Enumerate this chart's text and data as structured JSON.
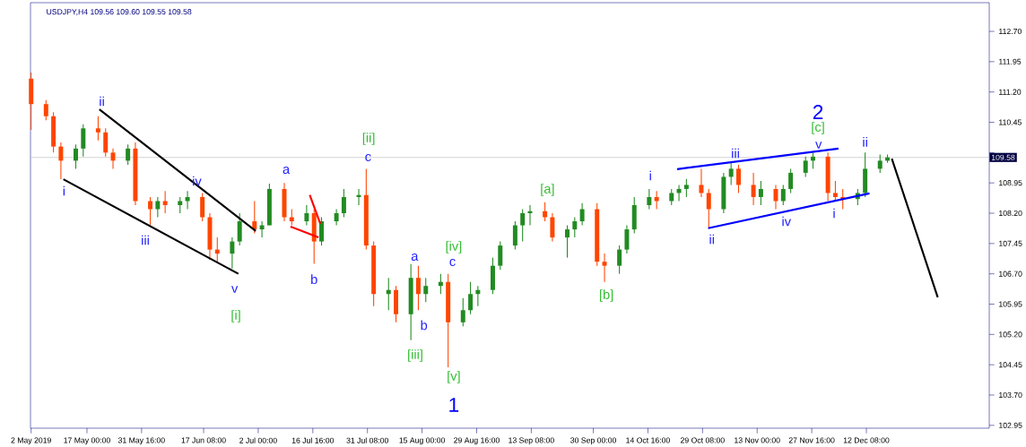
{
  "chart_data": {
    "type": "candlestick",
    "title": "USDJPY,H4  109.56 109.60 109.55 109.58",
    "x": [
      "2019-05-02",
      "2019-05-06",
      "2019-05-08",
      "2019-05-10",
      "2019-05-14",
      "2019-05-16",
      "2019-05-20",
      "2019-05-22",
      "2019-05-24",
      "2019-05-28",
      "2019-05-30",
      "2019-06-03",
      "2019-06-05",
      "2019-06-07",
      "2019-06-11",
      "2019-06-13",
      "2019-06-17",
      "2019-06-19",
      "2019-06-21",
      "2019-06-25",
      "2019-06-27",
      "2019-07-01",
      "2019-07-03",
      "2019-07-05",
      "2019-07-09",
      "2019-07-11",
      "2019-07-15",
      "2019-07-17",
      "2019-07-19",
      "2019-07-23",
      "2019-07-25",
      "2019-07-29",
      "2019-07-31",
      "2019-08-02",
      "2019-08-06",
      "2019-08-08",
      "2019-08-12",
      "2019-08-14",
      "2019-08-16",
      "2019-08-20",
      "2019-08-22",
      "2019-08-26",
      "2019-08-28",
      "2019-08-30",
      "2019-09-03",
      "2019-09-05",
      "2019-09-09",
      "2019-09-11",
      "2019-09-13",
      "2019-09-17",
      "2019-09-19",
      "2019-09-23",
      "2019-09-25",
      "2019-09-27",
      "2019-10-01",
      "2019-10-03",
      "2019-10-07",
      "2019-10-09",
      "2019-10-11",
      "2019-10-15",
      "2019-10-17",
      "2019-10-21",
      "2019-10-23",
      "2019-10-25",
      "2019-10-29",
      "2019-10-31",
      "2019-11-04",
      "2019-11-06",
      "2019-11-08",
      "2019-11-12",
      "2019-11-14",
      "2019-11-18",
      "2019-11-20",
      "2019-11-22",
      "2019-11-26",
      "2019-11-28",
      "2019-12-02",
      "2019-12-04",
      "2019-12-06",
      "2019-12-10",
      "2019-12-12",
      "2019-12-16",
      "2019-12-18"
    ],
    "ohlc": [
      [
        111.53,
        111.68,
        110.26,
        110.9
      ],
      [
        110.9,
        111.0,
        110.5,
        110.6
      ],
      [
        110.6,
        110.7,
        109.7,
        109.85
      ],
      [
        109.85,
        109.95,
        109.04,
        109.5
      ],
      [
        109.5,
        109.9,
        109.3,
        109.8
      ],
      [
        109.8,
        110.4,
        109.6,
        110.3
      ],
      [
        110.3,
        110.6,
        110.0,
        110.2
      ],
      [
        110.2,
        110.3,
        109.6,
        109.7
      ],
      [
        109.7,
        109.8,
        109.3,
        109.5
      ],
      [
        109.5,
        109.9,
        109.4,
        109.8
      ],
      [
        109.8,
        109.95,
        108.4,
        108.5
      ],
      [
        108.5,
        108.6,
        107.9,
        108.3
      ],
      [
        108.3,
        108.6,
        108.1,
        108.5
      ],
      [
        108.5,
        108.75,
        108.2,
        108.4
      ],
      [
        108.4,
        108.6,
        108.2,
        108.5
      ],
      [
        108.5,
        108.75,
        108.3,
        108.6
      ],
      [
        108.6,
        108.7,
        108.0,
        108.1
      ],
      [
        108.1,
        108.2,
        107.05,
        107.3
      ],
      [
        107.3,
        107.6,
        107.0,
        107.2
      ],
      [
        107.2,
        107.6,
        106.83,
        107.5
      ],
      [
        107.5,
        108.2,
        107.4,
        108.0
      ],
      [
        108.0,
        108.5,
        107.7,
        107.8
      ],
      [
        107.8,
        108.0,
        107.6,
        107.9
      ],
      [
        107.9,
        108.93,
        107.9,
        108.8
      ],
      [
        108.8,
        108.95,
        108.0,
        108.1
      ],
      [
        108.1,
        108.3,
        107.9,
        108.0
      ],
      [
        108.0,
        108.4,
        107.9,
        108.2
      ],
      [
        108.2,
        108.3,
        106.95,
        107.5
      ],
      [
        107.5,
        108.1,
        107.4,
        108.0
      ],
      [
        108.0,
        108.3,
        107.9,
        108.2
      ],
      [
        108.2,
        108.8,
        108.1,
        108.6
      ],
      [
        108.6,
        108.8,
        108.4,
        108.65
      ],
      [
        108.65,
        109.3,
        107.3,
        107.4
      ],
      [
        107.4,
        107.5,
        105.9,
        106.2
      ],
      [
        106.2,
        106.6,
        105.8,
        106.3
      ],
      [
        106.3,
        106.4,
        105.5,
        105.7
      ],
      [
        105.7,
        106.94,
        105.06,
        106.6
      ],
      [
        106.6,
        106.9,
        105.8,
        106.2
      ],
      [
        106.2,
        106.6,
        106.0,
        106.4
      ],
      [
        106.4,
        106.7,
        106.2,
        106.5
      ],
      [
        106.5,
        106.7,
        104.39,
        105.5
      ],
      [
        105.5,
        106.1,
        105.4,
        105.8
      ],
      [
        105.8,
        106.5,
        105.7,
        106.2
      ],
      [
        106.2,
        106.4,
        105.9,
        106.3
      ],
      [
        106.3,
        107.1,
        106.2,
        106.9
      ],
      [
        106.9,
        107.5,
        106.8,
        107.4
      ],
      [
        107.4,
        108.0,
        107.3,
        107.9
      ],
      [
        107.9,
        108.3,
        107.5,
        108.2
      ],
      [
        108.2,
        108.4,
        107.9,
        108.25
      ],
      [
        108.25,
        108.47,
        108.0,
        108.1
      ],
      [
        108.1,
        108.2,
        107.5,
        107.6
      ],
      [
        107.6,
        107.9,
        107.1,
        107.8
      ],
      [
        107.8,
        108.1,
        107.6,
        108.0
      ],
      [
        108.0,
        108.45,
        107.9,
        108.3
      ],
      [
        108.3,
        108.45,
        106.9,
        107.0
      ],
      [
        107.0,
        107.2,
        106.5,
        106.9
      ],
      [
        106.9,
        107.4,
        106.7,
        107.3
      ],
      [
        107.3,
        107.9,
        107.2,
        107.8
      ],
      [
        107.8,
        108.6,
        107.7,
        108.4
      ],
      [
        108.4,
        108.8,
        108.3,
        108.6
      ],
      [
        108.6,
        108.75,
        108.3,
        108.5
      ],
      [
        108.5,
        108.8,
        108.4,
        108.7
      ],
      [
        108.7,
        108.9,
        108.5,
        108.8
      ],
      [
        108.8,
        109.05,
        108.6,
        108.9
      ],
      [
        108.9,
        109.3,
        108.6,
        108.7
      ],
      [
        108.7,
        108.8,
        107.85,
        108.3
      ],
      [
        108.3,
        109.2,
        108.2,
        109.1
      ],
      [
        109.1,
        109.45,
        108.9,
        109.3
      ],
      [
        109.3,
        109.4,
        108.7,
        108.9
      ],
      [
        108.9,
        109.2,
        108.4,
        108.6
      ],
      [
        108.6,
        109.0,
        108.4,
        108.8
      ],
      [
        108.8,
        108.9,
        108.3,
        108.5
      ],
      [
        108.5,
        108.9,
        108.4,
        108.8
      ],
      [
        108.8,
        109.3,
        108.7,
        109.2
      ],
      [
        109.2,
        109.6,
        109.1,
        109.5
      ],
      [
        109.5,
        109.7,
        109.3,
        109.6
      ],
      [
        109.6,
        109.7,
        108.5,
        108.7
      ],
      [
        108.7,
        109.0,
        108.5,
        108.6
      ],
      [
        108.6,
        108.8,
        108.3,
        108.55
      ],
      [
        108.55,
        108.8,
        108.4,
        108.7
      ],
      [
        108.7,
        109.7,
        108.6,
        109.3
      ],
      [
        109.3,
        109.65,
        109.2,
        109.5
      ],
      [
        109.5,
        109.65,
        109.45,
        109.58
      ]
    ],
    "colors": [
      "#ff4500",
      "#ff4500",
      "#ff4500",
      "#ff4500",
      "#228b22",
      "#228b22",
      "#ff4500",
      "#ff4500",
      "#ff4500",
      "#228b22",
      "#ff4500",
      "#ff4500",
      "#228b22",
      "#ff4500",
      "#228b22",
      "#228b22",
      "#ff4500",
      "#ff4500",
      "#ff4500",
      "#228b22",
      "#228b22",
      "#ff4500",
      "#228b22",
      "#228b22",
      "#ff4500",
      "#ff4500",
      "#228b22",
      "#ff4500",
      "#228b22",
      "#228b22",
      "#228b22",
      "#228b22",
      "#ff4500",
      "#ff4500",
      "#228b22",
      "#ff4500",
      "#228b22",
      "#ff4500",
      "#228b22",
      "#228b22",
      "#ff4500",
      "#228b22",
      "#228b22",
      "#228b22",
      "#228b22",
      "#228b22",
      "#228b22",
      "#228b22",
      "#228b22",
      "#ff4500",
      "#ff4500",
      "#228b22",
      "#228b22",
      "#228b22",
      "#ff4500",
      "#ff4500",
      "#228b22",
      "#228b22",
      "#228b22",
      "#228b22",
      "#ff4500",
      "#228b22",
      "#228b22",
      "#228b22",
      "#ff4500",
      "#ff4500",
      "#228b22",
      "#228b22",
      "#ff4500",
      "#ff4500",
      "#228b22",
      "#ff4500",
      "#228b22",
      "#228b22",
      "#228b22",
      "#228b22",
      "#ff4500",
      "#ff4500",
      "#ff4500",
      "#228b22",
      "#228b22",
      "#228b22",
      "#228b22"
    ],
    "series": [
      {
        "type": "line",
        "color": "#000000",
        "x": [
          "2019-05-20T08:00",
          "2019-07-01T08:00"
        ],
        "values": [
          110.77,
          107.76
        ]
      },
      {
        "type": "line",
        "color": "#000000",
        "x": [
          "2019-05-10T16:00",
          "2019-06-26T16:00"
        ],
        "values": [
          109.04,
          106.7
        ]
      },
      {
        "type": "line",
        "color": "#ff0000",
        "x": [
          "2019-07-10T16:00",
          "2019-07-18T04:00"
        ],
        "values": [
          107.87,
          107.6
        ]
      },
      {
        "type": "line",
        "color": "#ff0000",
        "x": [
          "2019-07-15T20:00",
          "2019-07-18T16:00"
        ],
        "values": [
          108.65,
          107.94
        ]
      },
      {
        "type": "line",
        "color": "#0000ff",
        "x": [
          "2019-10-22T12:00",
          "2019-12-04T20:00"
        ],
        "values": [
          109.29,
          109.8
        ]
      },
      {
        "type": "line",
        "color": "#0000ff",
        "x": [
          "2019-10-30T20:00",
          "2019-12-13T04:00"
        ],
        "values": [
          107.83,
          108.69
        ]
      },
      {
        "type": "line",
        "color": "#000000",
        "x": [
          "2019-12-19T04:00",
          "2019-12-31T12:00"
        ],
        "values": [
          109.55,
          106.12
        ]
      }
    ],
    "annotations": [
      "i",
      "ii",
      "iii",
      "iv",
      "v",
      "[i]",
      "a",
      {
        "text": "b",
        "x": "2019-07-17",
        "y": 106.95
      },
      "c",
      "[ii]",
      "a",
      "[iii]",
      "b",
      "c",
      "[iv]",
      "[v]",
      "1",
      "[a]",
      "[b]",
      "i",
      "ii",
      "iii",
      "iv",
      "v",
      "[c]",
      "2",
      "i",
      {
        "text": "ii",
        "x": "2019-12-12",
        "y": 109.7
      }
    ],
    "ref_lines": [
      {
        "axis": "y",
        "value": 109.58,
        "label": "109.58",
        "color": "#c8c8c8"
      }
    ],
    "xlim": [
      "2019-05-01T20:00",
      "2020-01-14T08:00"
    ],
    "xticks": [
      {
        "value": "2019-05-02T00:00",
        "label": "2 May 2019"
      },
      {
        "value": "2019-05-17T00:00",
        "label": "17 May 00:00"
      },
      {
        "value": "2019-05-31T16:00",
        "label": "31 May 16:00"
      },
      {
        "value": "2019-06-17T08:00",
        "label": "17 Jun 08:00"
      },
      {
        "value": "2019-07-02T00:00",
        "label": "2 Jul 00:00"
      },
      {
        "value": "2019-07-16T16:00",
        "label": "16 Jul 16:00"
      },
      {
        "value": "2019-07-31T08:00",
        "label": "31 Jul 08:00"
      },
      {
        "value": "2019-08-15T00:00",
        "label": "15 Aug 00:00"
      },
      {
        "value": "2019-08-29T16:00",
        "label": "29 Aug 16:00"
      },
      {
        "value": "2019-09-13T08:00",
        "label": "13 Sep 08:00"
      },
      {
        "value": "2019-09-30T00:00",
        "label": "30 Sep 00:00"
      },
      {
        "value": "2019-10-14T16:00",
        "label": "14 Oct 16:00"
      },
      {
        "value": "2019-10-29T08:00",
        "label": "29 Oct 08:00"
      },
      {
        "value": "2019-11-13T00:00",
        "label": "13 Nov 00:00"
      },
      {
        "value": "2019-11-27T16:00",
        "label": "27 Nov 16:00"
      },
      {
        "value": "2019-12-12T08:00",
        "label": "12 Dec 08:00"
      }
    ],
    "ylim": [
      102.88,
      113.41
    ],
    "yticks": [
      {
        "value": 112.7,
        "label": "112.70"
      },
      {
        "value": 111.95,
        "label": "111.95"
      },
      {
        "value": 111.2,
        "label": "111.20"
      },
      {
        "value": 110.45,
        "label": "110.45"
      },
      {
        "value": 109.7,
        "label": null
      },
      {
        "value": 108.95,
        "label": "108.95"
      },
      {
        "value": 108.2,
        "label": "108.20"
      },
      {
        "value": 107.45,
        "label": "107.45"
      },
      {
        "value": 106.7,
        "label": "106.70"
      },
      {
        "value": 105.95,
        "label": "105.95"
      },
      {
        "value": 105.2,
        "label": "105.20"
      },
      {
        "value": 104.45,
        "label": "104.45"
      },
      {
        "value": 103.7,
        "label": "103.70"
      },
      {
        "value": 102.95,
        "label": "102.95"
      }
    ]
  }
}
